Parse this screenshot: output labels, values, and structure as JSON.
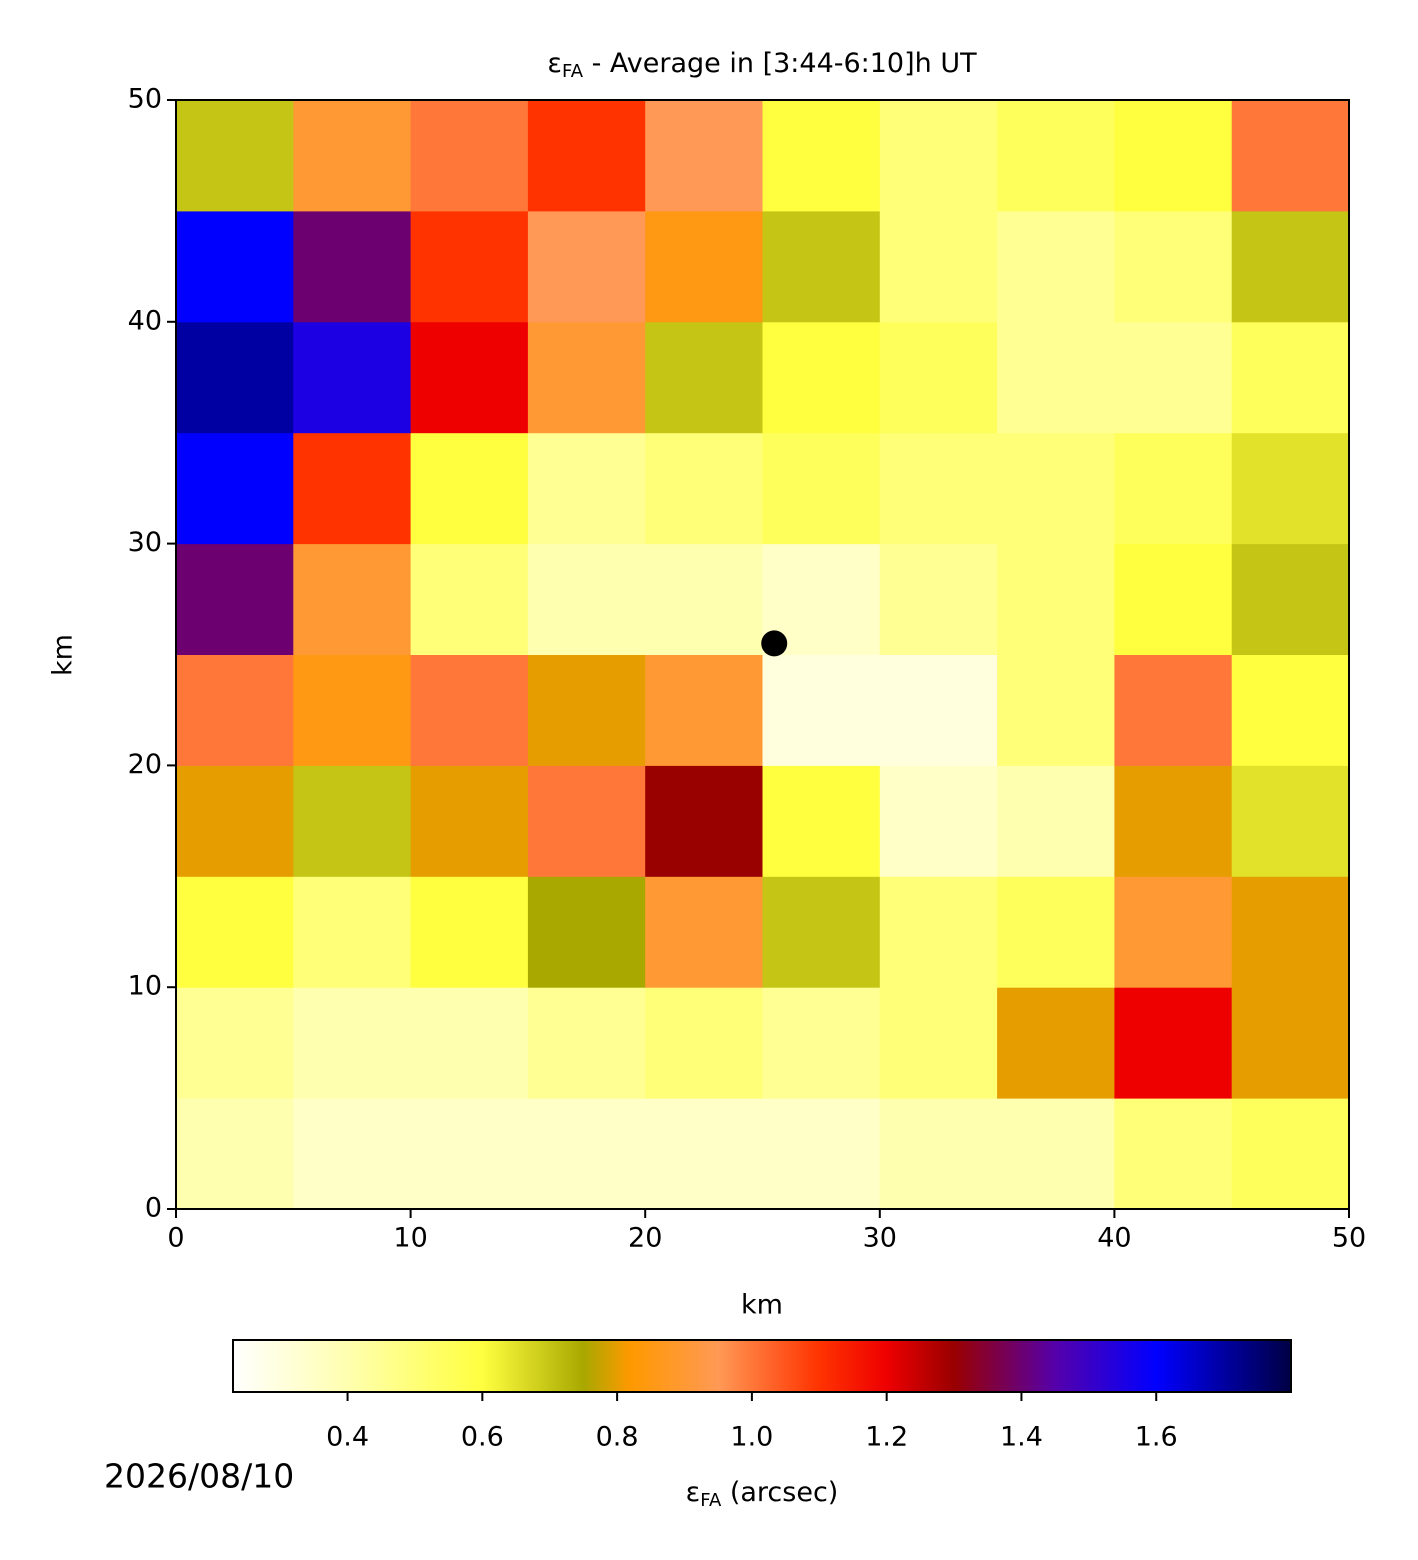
{
  "chart_data": {
    "type": "heatmap",
    "title": {
      "symbol": "ε",
      "sub": "FA",
      "rest": " - Average in [3:44-6:10]h UT"
    },
    "xlabel": "km",
    "ylabel": "km",
    "xlim": [
      0,
      50
    ],
    "ylim": [
      0,
      50
    ],
    "xticks": [
      0,
      10,
      20,
      30,
      40,
      50
    ],
    "yticks": [
      0,
      10,
      20,
      30,
      40,
      50
    ],
    "xbins": [
      0,
      5,
      10,
      15,
      20,
      25,
      30,
      35,
      40,
      45,
      50
    ],
    "ybins": [
      0,
      5,
      10,
      15,
      20,
      25,
      30,
      35,
      40,
      45,
      50
    ],
    "z": [
      [
        0.4,
        0.35,
        0.35,
        0.35,
        0.35,
        0.35,
        0.4,
        0.4,
        0.5,
        0.55
      ],
      [
        0.45,
        0.4,
        0.4,
        0.45,
        0.5,
        0.45,
        0.5,
        0.8,
        1.2,
        0.8
      ],
      [
        0.6,
        0.5,
        0.6,
        0.75,
        0.9,
        0.7,
        0.5,
        0.55,
        0.9,
        0.8
      ],
      [
        0.8,
        0.7,
        0.8,
        1.0,
        1.3,
        0.6,
        0.35,
        0.4,
        0.8,
        0.65
      ],
      [
        1.0,
        0.85,
        1.0,
        0.8,
        0.9,
        0.3,
        0.3,
        0.5,
        1.0,
        0.6
      ],
      [
        1.4,
        0.9,
        0.5,
        0.4,
        0.4,
        0.35,
        0.45,
        0.5,
        0.6,
        0.7
      ],
      [
        1.6,
        1.1,
        0.6,
        0.45,
        0.5,
        0.55,
        0.5,
        0.5,
        0.55,
        0.65
      ],
      [
        1.7,
        1.55,
        1.2,
        0.9,
        0.7,
        0.6,
        0.55,
        0.45,
        0.45,
        0.55
      ],
      [
        1.6,
        1.4,
        1.1,
        0.95,
        0.85,
        0.7,
        0.5,
        0.45,
        0.5,
        0.7
      ],
      [
        0.7,
        0.9,
        1.0,
        1.1,
        0.95,
        0.6,
        0.5,
        0.55,
        0.6,
        1.0
      ]
    ],
    "marker": {
      "x": 25.5,
      "y": 25.5,
      "color": "#000000"
    },
    "clim": [
      0.23,
      1.8
    ],
    "colorscale": [
      [
        0.23,
        "#ffffff"
      ],
      [
        0.4,
        "#ffffb0"
      ],
      [
        0.6,
        "#ffff40"
      ],
      [
        0.75,
        "#a8a800"
      ],
      [
        0.82,
        "#ff9900"
      ],
      [
        0.95,
        "#ff9955"
      ],
      [
        1.1,
        "#ff3300"
      ],
      [
        1.2,
        "#ee0000"
      ],
      [
        1.3,
        "#990000"
      ],
      [
        1.45,
        "#5500aa"
      ],
      [
        1.6,
        "#0000ff"
      ],
      [
        1.8,
        "#000044"
      ]
    ],
    "colorbar_ticks": [
      0.4,
      0.6,
      0.8,
      1.0,
      1.2,
      1.4,
      1.6
    ],
    "colorbar_label": {
      "symbol": "ε",
      "sub": "FA",
      "rest": " (arcsec)"
    },
    "date": "2026/08/10"
  }
}
